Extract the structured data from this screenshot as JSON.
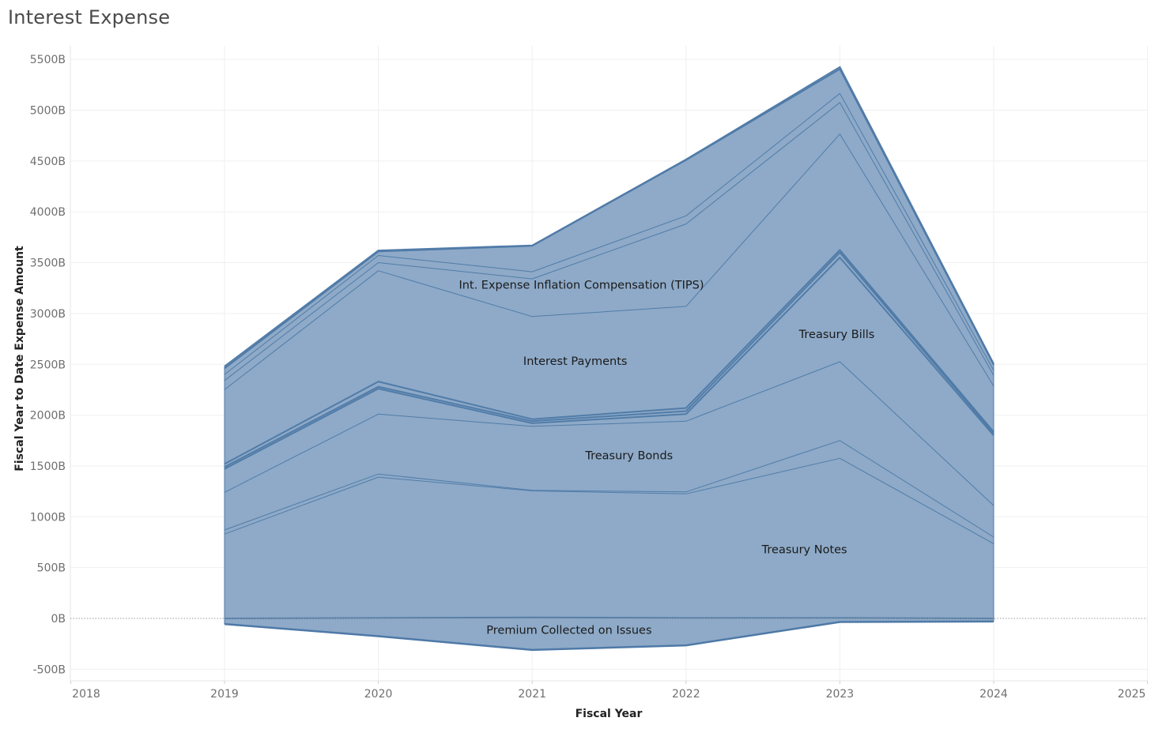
{
  "chart_data": {
    "type": "area",
    "title": "Interest Expense",
    "xlabel": "Fiscal Year",
    "ylabel": "Fiscal Year to Date Expense Amount",
    "x_ticks": [
      "2018",
      "2019",
      "2020",
      "2021",
      "2022",
      "2023",
      "2024",
      "2025"
    ],
    "y_ticks": [
      "5500B",
      "5000B",
      "4500B",
      "4000B",
      "3500B",
      "3000B",
      "2500B",
      "2000B",
      "1500B",
      "1000B",
      "500B",
      "0B",
      "-500B"
    ],
    "xlim": [
      2018,
      2025
    ],
    "ylim": [
      -600,
      5600
    ],
    "x": [
      2019,
      2020,
      2021,
      2022,
      2023,
      2024
    ],
    "zero_line": true,
    "grid": true,
    "color": "#8eaac8",
    "edge_color": "#4e79a7",
    "negative_boundaries": [
      [
        -55,
        -175,
        -310,
        -265,
        -35,
        -30
      ]
    ],
    "positive_boundaries": [
      [
        0,
        5,
        10,
        5,
        5,
        0
      ],
      [
        830,
        1390,
        1255,
        1225,
        1575,
        735
      ],
      [
        870,
        1420,
        1260,
        1245,
        1750,
        800
      ],
      [
        1240,
        2010,
        1890,
        1940,
        2525,
        1110
      ],
      [
        1470,
        2260,
        1920,
        2010,
        3550,
        1800
      ],
      [
        1490,
        2280,
        1940,
        2040,
        3600,
        1820
      ],
      [
        1520,
        2330,
        1960,
        2070,
        3625,
        1835
      ],
      [
        2250,
        3420,
        2970,
        3070,
        4765,
        2285
      ],
      [
        2340,
        3500,
        3340,
        3880,
        5075,
        2390
      ],
      [
        2400,
        3570,
        3410,
        3960,
        5165,
        2440
      ],
      [
        2460,
        3610,
        3665,
        4510,
        5405,
        2495
      ],
      [
        2480,
        3620,
        3670,
        4515,
        5425,
        2505
      ]
    ],
    "labels": [
      {
        "text": "Int. Expense Inflation Compensation (TIPS)",
        "x": 2021.32,
        "y": 3245
      },
      {
        "text": "Treasury Bills",
        "x": 2022.98,
        "y": 2760
      },
      {
        "text": "Interest Payments",
        "x": 2021.28,
        "y": 2495
      },
      {
        "text": "Treasury Bonds",
        "x": 2021.63,
        "y": 1565
      },
      {
        "text": "Treasury Notes",
        "x": 2022.77,
        "y": 640
      },
      {
        "text": "Premium Collected on Issues",
        "x": 2021.24,
        "y": -150
      }
    ]
  }
}
